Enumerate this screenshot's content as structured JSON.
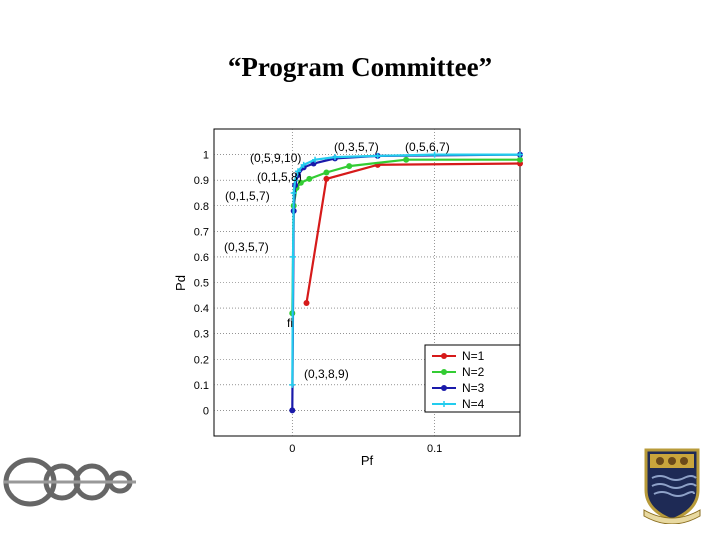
{
  "slide": {
    "title": "“Program Committee”"
  },
  "chart_data": {
    "type": "line",
    "xlabel": "Pf",
    "ylabel": "Pd",
    "xlim": [
      -0.055,
      0.16
    ],
    "ylim": [
      -0.1,
      1.1
    ],
    "x_ticks": [
      0,
      0.1
    ],
    "x_tick_labels": [
      "0",
      "0.1"
    ],
    "y_ticks": [
      0,
      0.1,
      0.2,
      0.3,
      0.4,
      0.5,
      0.6,
      0.7,
      0.8,
      0.9,
      1
    ],
    "y_tick_labels": [
      "0",
      "0.1",
      "0.2",
      "0.3",
      "0.4",
      "0.5",
      "0.6",
      "0.7",
      "0.8",
      "0.9",
      "1"
    ],
    "grid": true,
    "legend": "bottom-right",
    "series": [
      {
        "name": "N=1",
        "color": "#d61a1a",
        "marker": "dot",
        "x": [
          0.01,
          0.024,
          0.06,
          0.16
        ],
        "y": [
          0.42,
          0.905,
          0.96,
          0.965
        ]
      },
      {
        "name": "N=2",
        "color": "#33cc33",
        "marker": "dot",
        "x": [
          0,
          0.001,
          0.003,
          0.006,
          0.012,
          0.024,
          0.04,
          0.08,
          0.16
        ],
        "y": [
          0.38,
          0.8,
          0.87,
          0.89,
          0.905,
          0.93,
          0.955,
          0.98,
          0.98
        ]
      },
      {
        "name": "N=3",
        "color": "#1a1aaa",
        "marker": "dot",
        "x": [
          0,
          0.001,
          0.002,
          0.004,
          0.008,
          0.015,
          0.03,
          0.06,
          0.16
        ],
        "y": [
          0.0,
          0.78,
          0.88,
          0.92,
          0.95,
          0.965,
          0.985,
          0.995,
          1.0
        ]
      },
      {
        "name": "N=4",
        "color": "#22ccee",
        "marker": "plus",
        "x": [
          0,
          0.0005,
          0.001,
          0.002,
          0.004,
          0.008,
          0.016,
          0.03,
          0.06,
          0.1,
          0.16
        ],
        "y": [
          0.1,
          0.6,
          0.85,
          0.9,
          0.935,
          0.96,
          0.98,
          0.99,
          0.995,
          1.0,
          1.0
        ]
      }
    ],
    "annotations": [
      "(0,3,5,7)",
      "(0,5,6,7)",
      "(0,5,9,10)",
      "(0,1,5,8)",
      "(0,1,5,7)",
      "(0,3,5,7)",
      "(0,3,8,9)",
      "fi"
    ]
  }
}
